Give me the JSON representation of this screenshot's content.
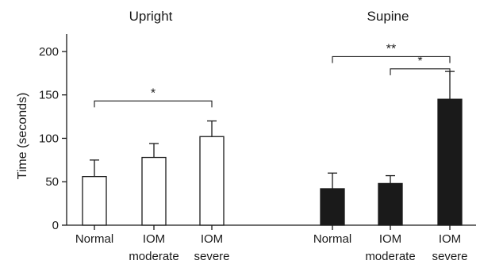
{
  "chart_data": {
    "type": "bar",
    "ylabel": "Time (seconds)",
    "ylim": [
      0,
      220
    ],
    "yticks": [
      0,
      50,
      100,
      150,
      200
    ],
    "grid": false,
    "groups": [
      {
        "title": "Upright",
        "fill": "#ffffff",
        "bars": [
          {
            "label": [
              "Normal"
            ],
            "value": 56,
            "error": 19
          },
          {
            "label": [
              "IOM",
              "moderate"
            ],
            "value": 78,
            "error": 16
          },
          {
            "label": [
              "IOM",
              "severe"
            ],
            "value": 102,
            "error": 18
          }
        ],
        "brackets": [
          {
            "from": 0,
            "to": 2,
            "label": "*",
            "y": 143
          }
        ]
      },
      {
        "title": "Supine",
        "fill": "#1a1a1a",
        "bars": [
          {
            "label": [
              "Normal"
            ],
            "value": 42,
            "error": 18
          },
          {
            "label": [
              "IOM",
              "moderate"
            ],
            "value": 48,
            "error": 9
          },
          {
            "label": [
              "IOM",
              "severe"
            ],
            "value": 145,
            "error": 32
          }
        ],
        "brackets": [
          {
            "from": 0,
            "to": 2,
            "label": "**",
            "y": 194
          },
          {
            "from": 1,
            "to": 2,
            "label": "*",
            "y": 180
          }
        ]
      }
    ]
  }
}
